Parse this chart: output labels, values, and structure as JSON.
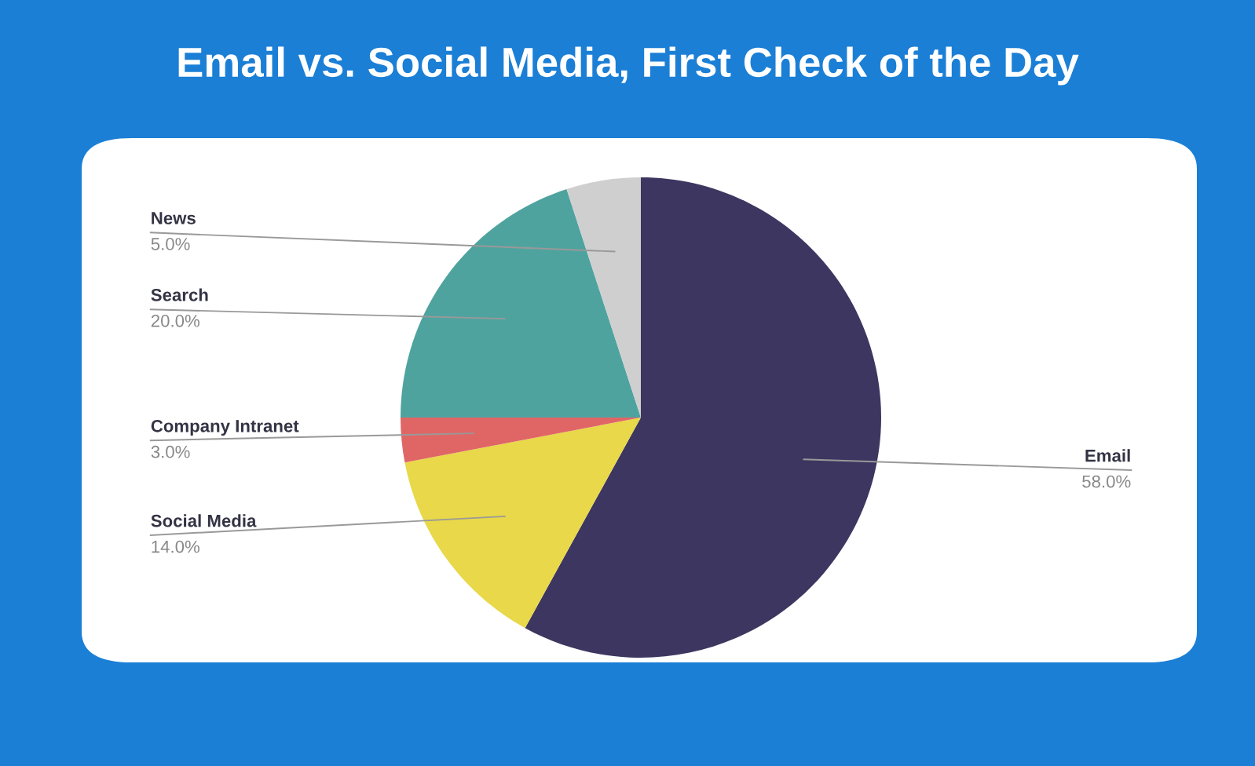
{
  "chart_data": {
    "type": "pie",
    "title": "Email vs. Social Media, First Check of the Day",
    "categories": [
      "Email",
      "Social Media",
      "Company Intranet",
      "Search",
      "News"
    ],
    "values": [
      58,
      14,
      3,
      20,
      5
    ],
    "value_labels": [
      "58.0%",
      "14.0%",
      "3.0%",
      "20.0%",
      "5.0%"
    ],
    "colors": [
      "#3d3660",
      "#e8d84a",
      "#e06666",
      "#4fa39f",
      "#cfcfcf"
    ],
    "legend": false
  }
}
